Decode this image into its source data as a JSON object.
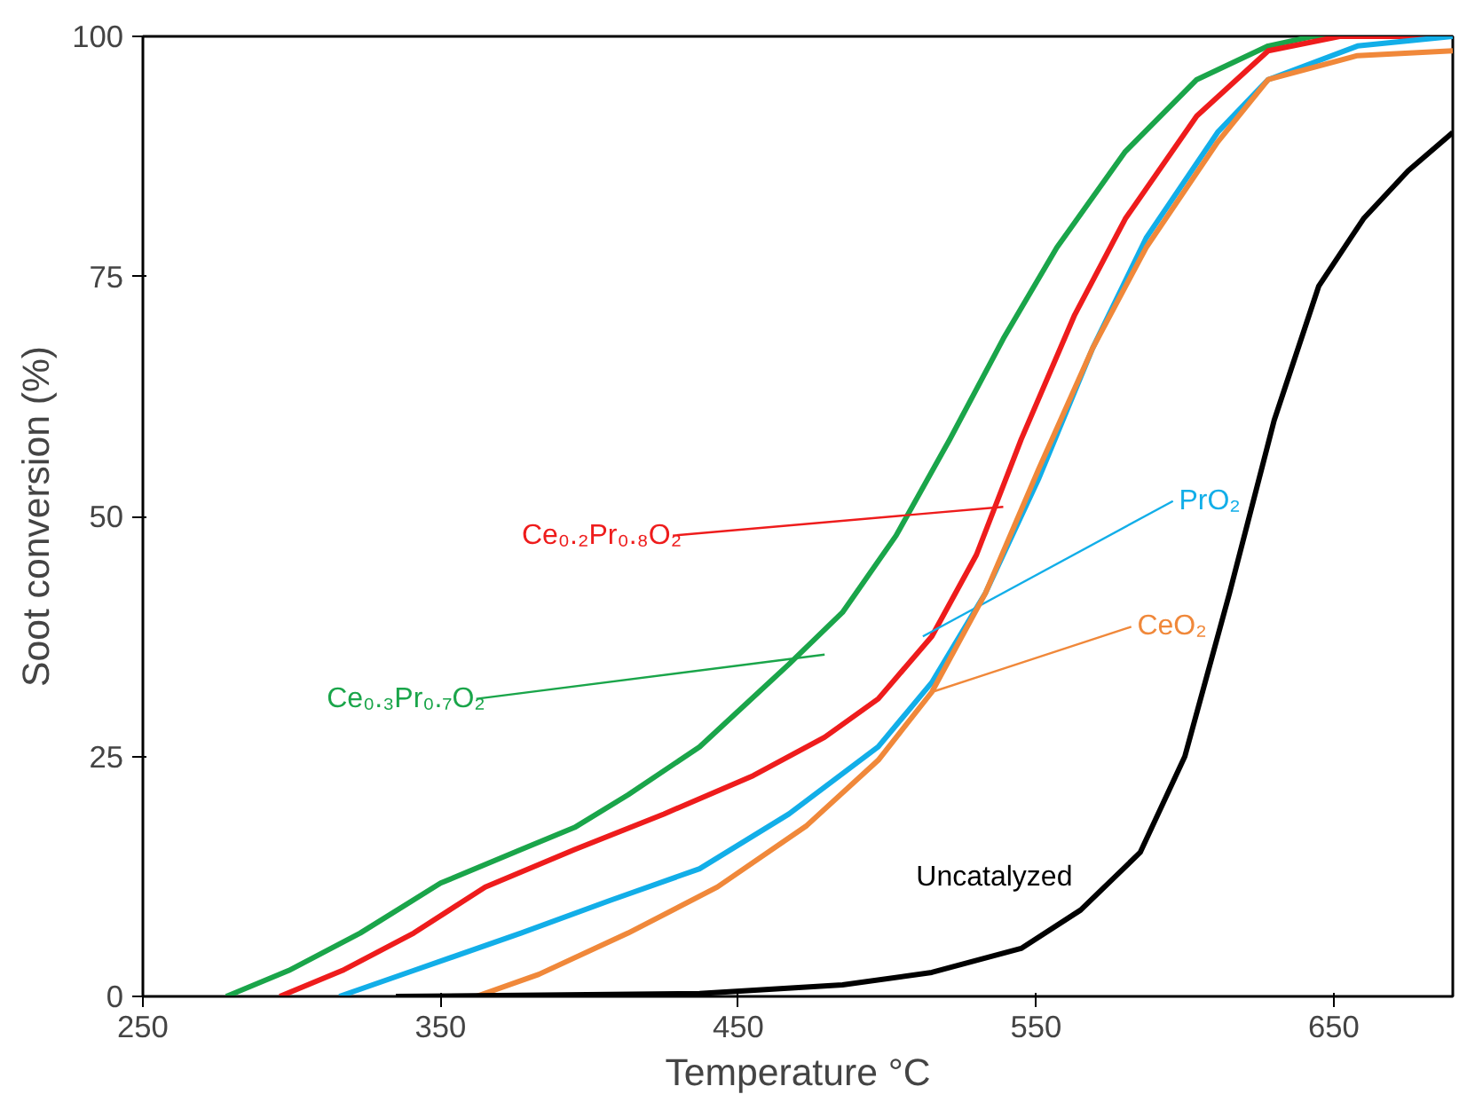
{
  "chart_data": {
    "type": "line",
    "xlabel": "Temperature °C",
    "ylabel": "Soot conversion (%)",
    "xlim": [
      250,
      690
    ],
    "ylim": [
      0,
      100
    ],
    "xticks": [
      250,
      350,
      450,
      550,
      650
    ],
    "yticks": [
      0,
      25,
      50,
      75,
      100
    ],
    "grid": false,
    "marker": "none",
    "line_style": "solid",
    "series": [
      {
        "name": "Ce₀.₃Pr₀.₇O₂",
        "color": "#1aa54a",
        "x": [
          278,
          299,
          323,
          350,
          377,
          395,
          413,
          437,
          467,
          485,
          503,
          521,
          539,
          557,
          580,
          604,
          628,
          643,
          690
        ],
        "values": [
          0,
          2.7,
          6.6,
          11.8,
          15.3,
          17.6,
          21,
          26,
          34.6,
          40,
          48,
          58,
          68.5,
          78,
          88,
          95.5,
          99,
          100,
          100
        ]
      },
      {
        "name": "Ce₀.₂Pr₀.₈O₂",
        "color": "#ee1c1c",
        "x": [
          296,
          317,
          341,
          365,
          395,
          425,
          455,
          479,
          497,
          515,
          530,
          545,
          563,
          580,
          604,
          628,
          652,
          690
        ],
        "values": [
          0,
          2.7,
          6.6,
          11.4,
          15.3,
          19,
          23,
          27,
          31,
          37.5,
          46,
          58,
          71,
          81,
          91.7,
          98.5,
          100,
          100
        ]
      },
      {
        "name": "PrO₂",
        "color": "#12aee8",
        "x": [
          316,
          341,
          377,
          407,
          437,
          467,
          497,
          515,
          533,
          551,
          569,
          587,
          611,
          628,
          658,
          690
        ],
        "values": [
          0,
          2.7,
          6.6,
          10,
          13.3,
          19,
          26,
          32.7,
          42,
          54,
          67.5,
          79,
          90,
          95.5,
          99,
          100
        ]
      },
      {
        "name": "CeO₂",
        "color": "#f0883a",
        "x": [
          362,
          383,
          413,
          443,
          473,
          497,
          515,
          533,
          551,
          569,
          587,
          611,
          628,
          658,
          690
        ],
        "values": [
          0,
          2.3,
          6.6,
          11.4,
          17.8,
          24.6,
          31.7,
          42,
          55,
          67.5,
          78,
          89,
          95.5,
          98,
          98.5
        ]
      },
      {
        "name": "Uncatalyzed",
        "color": "#000000",
        "x": [
          335,
          437,
          485,
          515,
          545,
          565,
          585,
          600,
          615,
          630,
          645,
          660,
          675,
          690
        ],
        "values": [
          0,
          0.3,
          1.2,
          2.5,
          5,
          9,
          15,
          25,
          42,
          60,
          74,
          81,
          86,
          90
        ]
      }
    ]
  }
}
